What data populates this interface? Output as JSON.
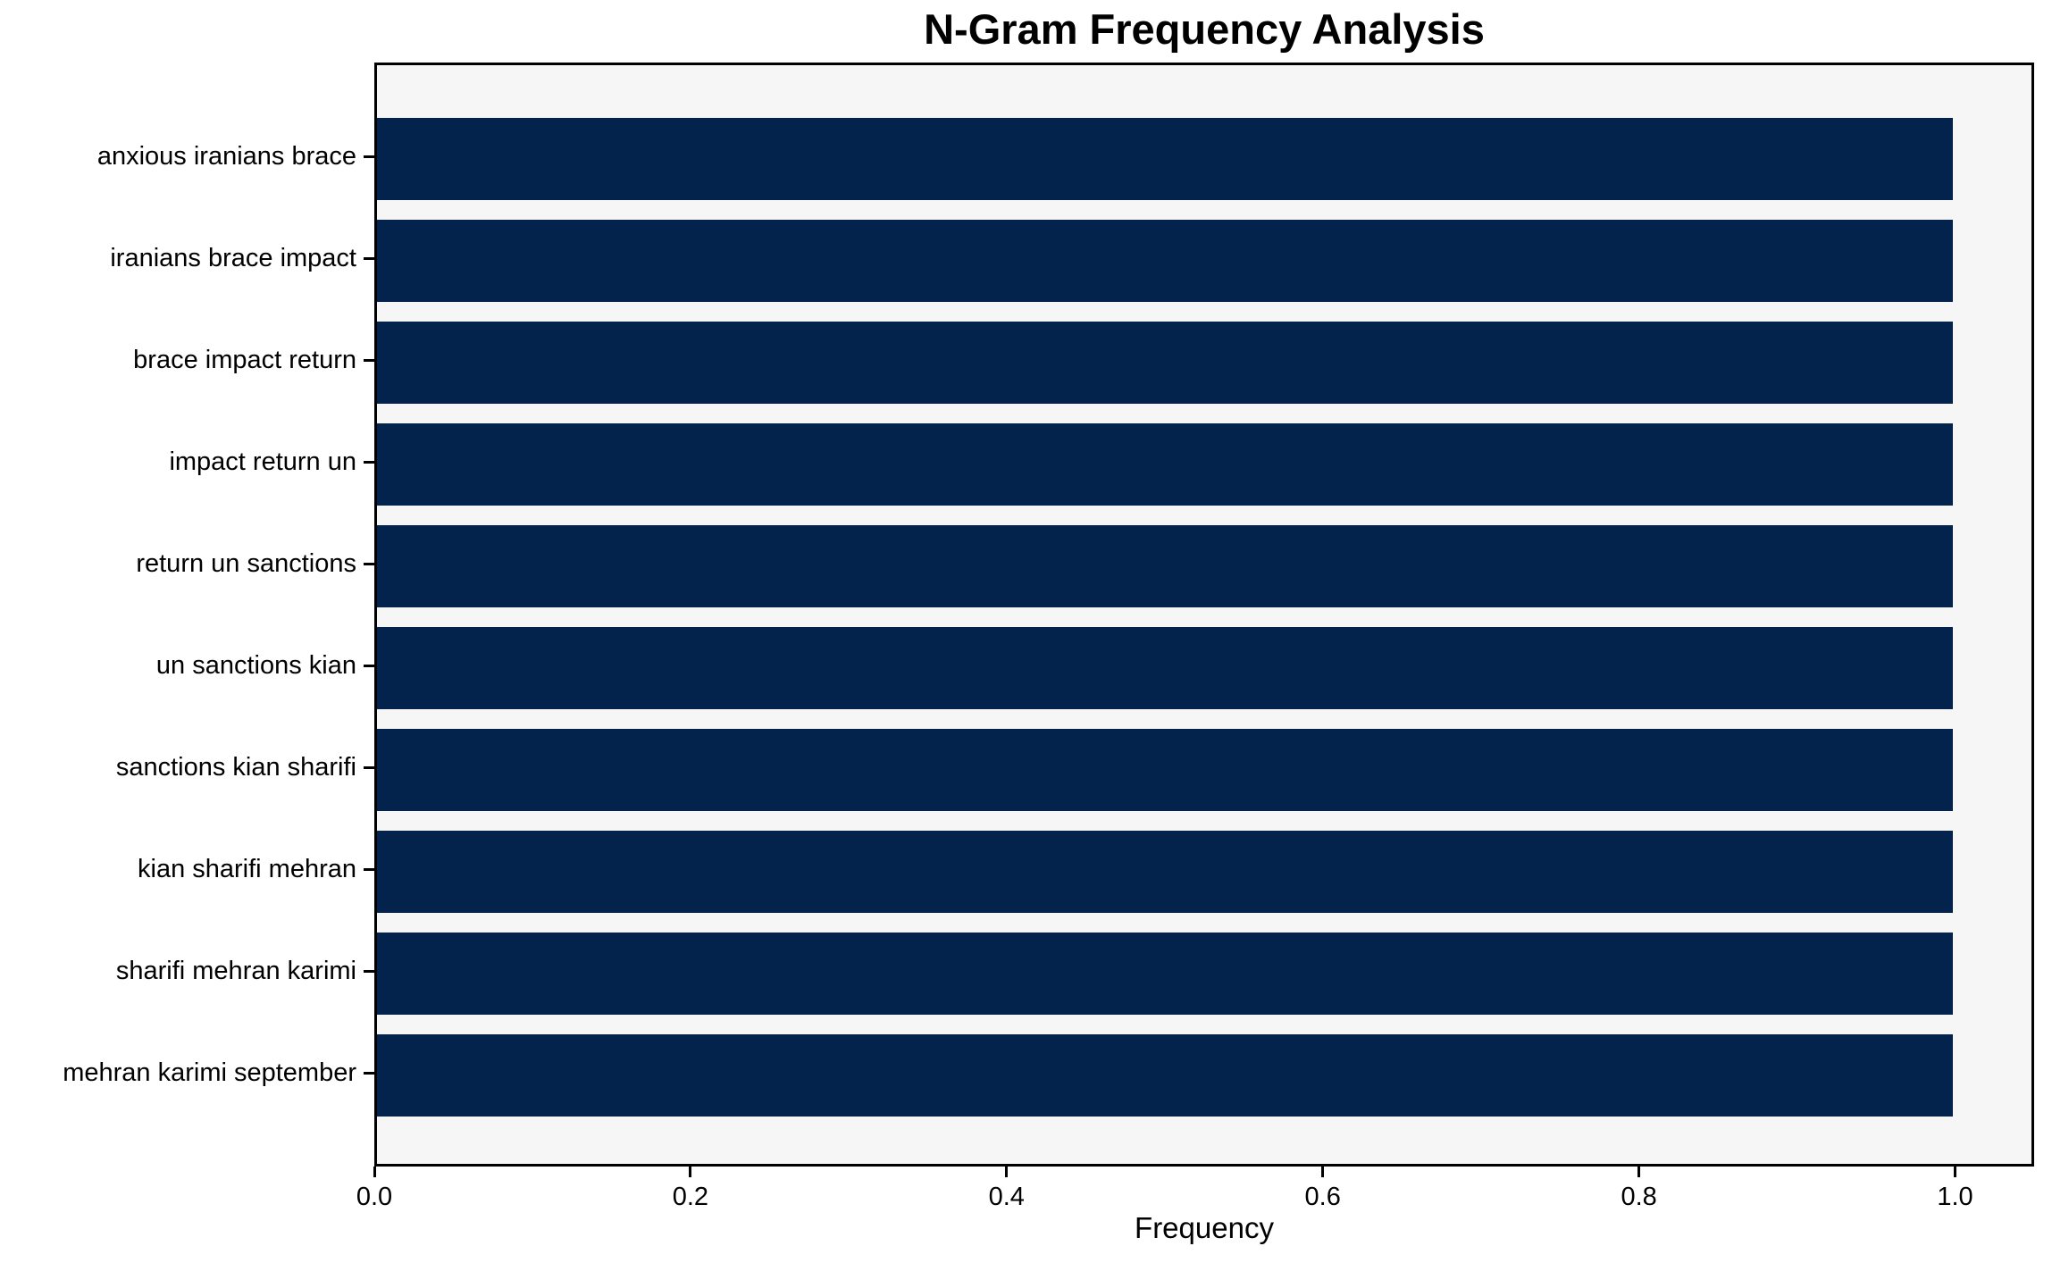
{
  "chart_data": {
    "type": "bar",
    "orientation": "horizontal",
    "title": "N-Gram Frequency Analysis",
    "xlabel": "Frequency",
    "categories": [
      "anxious iranians brace",
      "iranians brace impact",
      "brace impact return",
      "impact return un",
      "return un sanctions",
      "un sanctions kian",
      "sanctions kian sharifi",
      "kian sharifi mehran",
      "sharifi mehran karimi",
      "mehran karimi september"
    ],
    "values": [
      1.0,
      1.0,
      1.0,
      1.0,
      1.0,
      1.0,
      1.0,
      1.0,
      1.0,
      1.0
    ],
    "xlim": [
      0.0,
      1.05
    ],
    "xticks": [
      {
        "value": 0.0,
        "label": "0.0"
      },
      {
        "value": 0.2,
        "label": "0.2"
      },
      {
        "value": 0.4,
        "label": "0.4"
      },
      {
        "value": 0.6,
        "label": "0.6"
      },
      {
        "value": 0.8,
        "label": "0.8"
      },
      {
        "value": 1.0,
        "label": "1.0"
      }
    ],
    "grid": false,
    "legend": null,
    "colors": {
      "bar": "#03234d",
      "plot_background": "#f6f6f6",
      "figure_background": "#ffffff",
      "axis": "#000000",
      "text": "#000000"
    }
  }
}
